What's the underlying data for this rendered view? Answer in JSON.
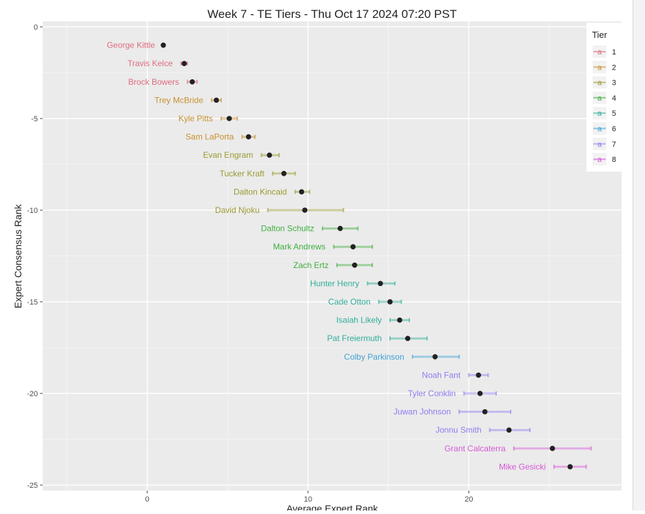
{
  "chart_data": {
    "type": "scatter",
    "title": "Week 7 - TE Tiers - Thu Oct 17 2024 07:20 PST",
    "xlabel": "Average Expert Rank",
    "ylabel": "Expert Consensus Rank",
    "xlim": [
      -6.5,
      29.5
    ],
    "ylim": [
      -25.3,
      0.3
    ],
    "x_ticks": [
      0,
      10,
      20
    ],
    "x_tick_labels": [
      "0",
      "10",
      "20"
    ],
    "y_ticks": [
      0,
      -5,
      -10,
      -15,
      -20,
      -25
    ],
    "y_tick_labels": [
      "0",
      "-5",
      "-10",
      "-15",
      "-20",
      "-25"
    ],
    "grid": true,
    "legend": {
      "title": "Tier",
      "position": "right",
      "glyph": "a",
      "entries": [
        "1",
        "2",
        "3",
        "4",
        "5",
        "6",
        "7",
        "8"
      ]
    },
    "tier_colors": [
      "#e06b7f",
      "#c8902e",
      "#9a9a30",
      "#3fae3f",
      "#2fae9a",
      "#3fa2d6",
      "#8e7cf0",
      "#d659d6"
    ],
    "points": [
      {
        "name": "George Kittle",
        "tier": 1,
        "rank": 1,
        "avg": 1.0,
        "lo": 1.0,
        "hi": 1.0
      },
      {
        "name": "Travis Kelce",
        "tier": 1,
        "rank": 2,
        "avg": 2.3,
        "lo": 2.1,
        "hi": 2.5
      },
      {
        "name": "Brock Bowers",
        "tier": 1,
        "rank": 3,
        "avg": 2.8,
        "lo": 2.5,
        "hi": 3.1
      },
      {
        "name": "Trey McBride",
        "tier": 2,
        "rank": 4,
        "avg": 4.3,
        "lo": 4.0,
        "hi": 4.6
      },
      {
        "name": "Kyle Pitts",
        "tier": 2,
        "rank": 5,
        "avg": 5.1,
        "lo": 4.6,
        "hi": 5.6
      },
      {
        "name": "Sam LaPorta",
        "tier": 2,
        "rank": 6,
        "avg": 6.3,
        "lo": 5.9,
        "hi": 6.7
      },
      {
        "name": "Evan Engram",
        "tier": 3,
        "rank": 7,
        "avg": 7.6,
        "lo": 7.1,
        "hi": 8.2
      },
      {
        "name": "Tucker Kraft",
        "tier": 3,
        "rank": 8,
        "avg": 8.5,
        "lo": 7.8,
        "hi": 9.2
      },
      {
        "name": "Dalton Kincaid",
        "tier": 3,
        "rank": 9,
        "avg": 9.6,
        "lo": 9.2,
        "hi": 10.1
      },
      {
        "name": "David Njoku",
        "tier": 3,
        "rank": 10,
        "avg": 9.8,
        "lo": 7.5,
        "hi": 12.2
      },
      {
        "name": "Dalton Schultz",
        "tier": 4,
        "rank": 11,
        "avg": 12.0,
        "lo": 10.9,
        "hi": 13.1
      },
      {
        "name": "Mark Andrews",
        "tier": 4,
        "rank": 12,
        "avg": 12.8,
        "lo": 11.6,
        "hi": 14.0
      },
      {
        "name": "Zach Ertz",
        "tier": 4,
        "rank": 13,
        "avg": 12.9,
        "lo": 11.8,
        "hi": 14.0
      },
      {
        "name": "Hunter Henry",
        "tier": 5,
        "rank": 14,
        "avg": 14.5,
        "lo": 13.7,
        "hi": 15.4
      },
      {
        "name": "Cade Otton",
        "tier": 5,
        "rank": 15,
        "avg": 15.1,
        "lo": 14.4,
        "hi": 15.8
      },
      {
        "name": "Isaiah Likely",
        "tier": 5,
        "rank": 16,
        "avg": 15.7,
        "lo": 15.1,
        "hi": 16.3
      },
      {
        "name": "Pat Freiermuth",
        "tier": 5,
        "rank": 17,
        "avg": 16.2,
        "lo": 15.1,
        "hi": 17.4
      },
      {
        "name": "Colby Parkinson",
        "tier": 6,
        "rank": 18,
        "avg": 17.9,
        "lo": 16.5,
        "hi": 19.4
      },
      {
        "name": "Noah Fant",
        "tier": 7,
        "rank": 19,
        "avg": 20.6,
        "lo": 20.0,
        "hi": 21.2
      },
      {
        "name": "Tyler Conklin",
        "tier": 7,
        "rank": 20,
        "avg": 20.7,
        "lo": 19.7,
        "hi": 21.7
      },
      {
        "name": "Juwan Johnson",
        "tier": 7,
        "rank": 21,
        "avg": 21.0,
        "lo": 19.4,
        "hi": 22.6
      },
      {
        "name": "Jonnu Smith",
        "tier": 7,
        "rank": 22,
        "avg": 22.5,
        "lo": 21.3,
        "hi": 23.8
      },
      {
        "name": "Grant Calcaterra",
        "tier": 8,
        "rank": 23,
        "avg": 25.2,
        "lo": 22.8,
        "hi": 27.6
      },
      {
        "name": "Mike Gesicki",
        "tier": 8,
        "rank": 24,
        "avg": 26.3,
        "lo": 25.3,
        "hi": 27.3
      }
    ]
  }
}
